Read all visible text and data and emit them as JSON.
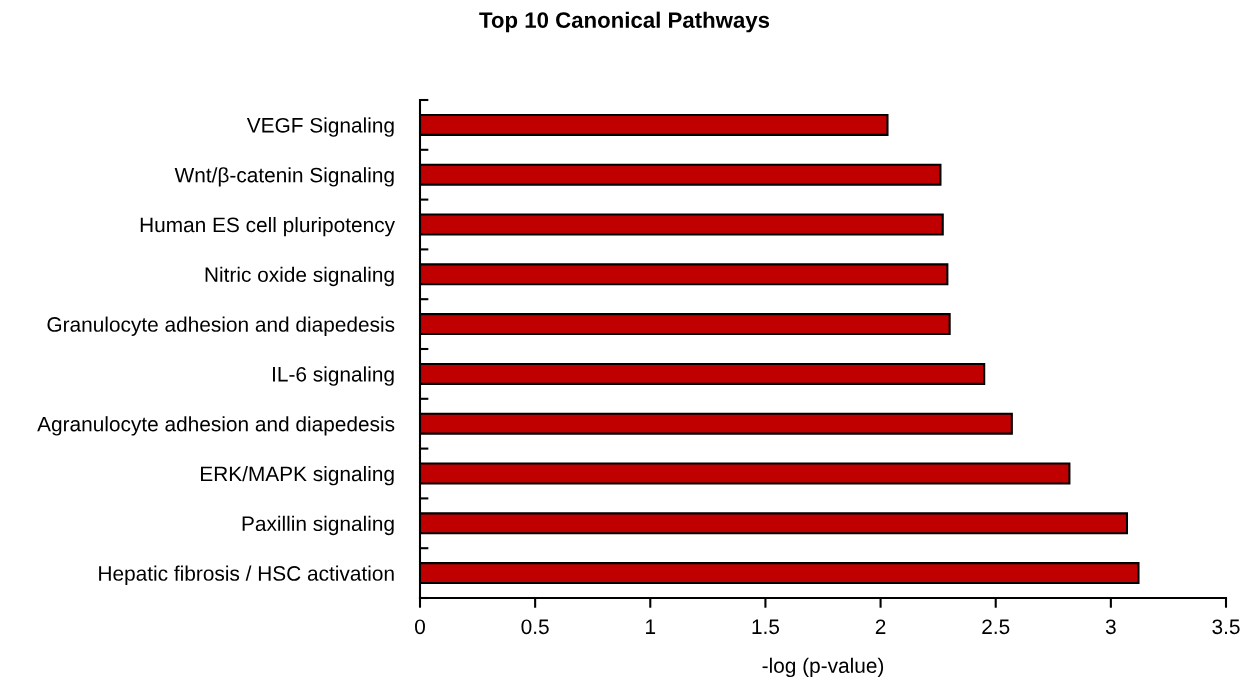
{
  "chart_data": {
    "type": "bar",
    "orientation": "horizontal",
    "title": "Top 10 Canonical Pathways",
    "xlabel": "-log (p-value)",
    "categories": [
      "VEGF Signaling",
      "Wnt/β-catenin Signaling",
      "Human ES cell pluripotency",
      "Nitric oxide signaling",
      "Granulocyte adhesion and diapedesis",
      "IL-6 signaling",
      "Agranulocyte adhesion and diapedesis",
      "ERK/MAPK signaling",
      "Paxillin signaling",
      "Hepatic fibrosis / HSC activation"
    ],
    "values": [
      2.03,
      2.26,
      2.27,
      2.29,
      2.3,
      2.45,
      2.57,
      2.82,
      3.07,
      3.12
    ],
    "color": "#c00000",
    "xlim": [
      0,
      3.5
    ],
    "xticks": [
      0,
      0.5,
      1,
      1.5,
      2,
      2.5,
      3,
      3.5
    ],
    "grid": false,
    "legend": false
  }
}
